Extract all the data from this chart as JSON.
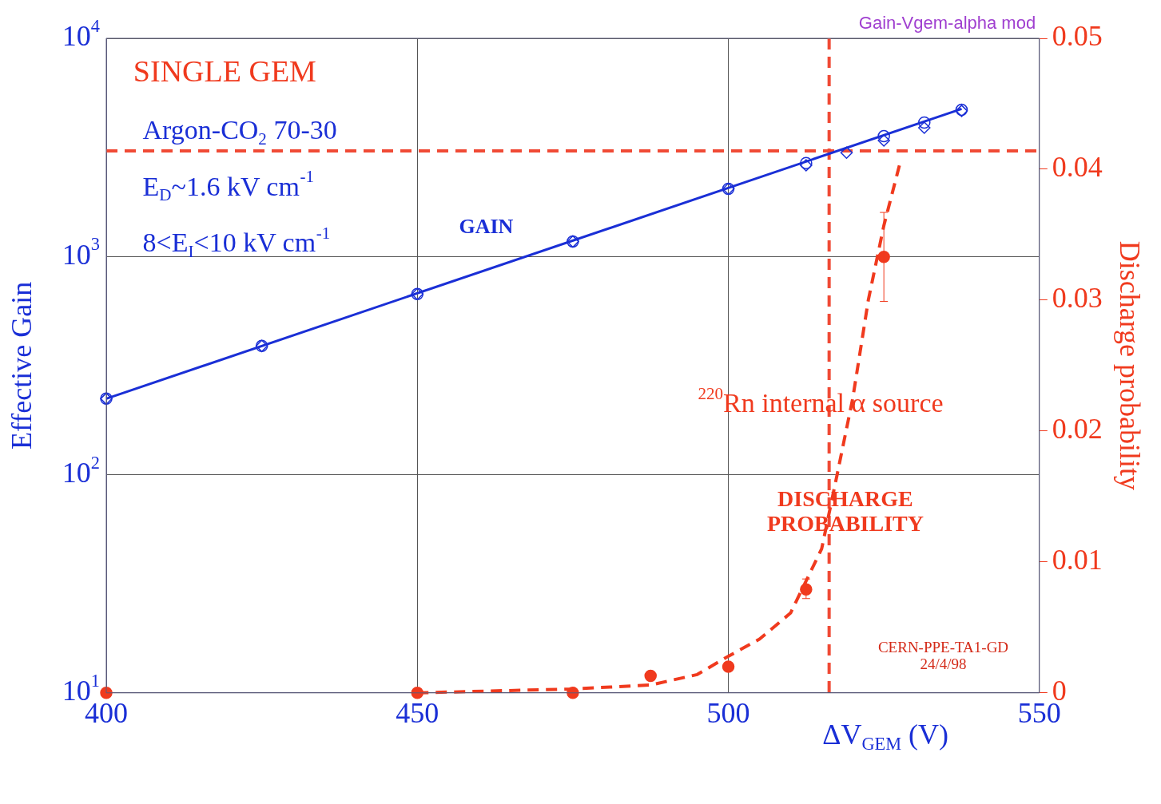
{
  "chart_data": {
    "type": "scatter",
    "annotations": [
      "Gain-Vgem-alpha mod",
      "SINGLE GEM",
      "Argon-CO$_{2}$ 70-30",
      "E$_{D}$~1.6 kV cm$^{-1}$",
      "8<E$_{I}$<10 kV cm$^{-1}$",
      "GAIN",
      "$^{220}$Rn internal α source",
      "DISCHARGE PROBABILITY",
      "CERN-PPE-TA1-GD 24/4/98"
    ],
    "xlabel": "ΔV$_{GEM}$ (V)",
    "ylabel": "Effective Gain",
    "y2label": "Discharge probability",
    "xlim": [
      400,
      550
    ],
    "xticks": [
      400,
      450,
      500,
      550
    ],
    "log": "y",
    "ylim": [
      10,
      10000
    ],
    "yticks": [
      {
        "value": 10,
        "label": "10$^{1}$"
      },
      {
        "value": 100,
        "label": "10$^{2}$"
      },
      {
        "value": 1000,
        "label": "10$^{3}$"
      },
      {
        "value": 10000,
        "label": "10$^{4}$"
      }
    ],
    "y2lim": [
      0,
      0.05
    ],
    "y2ticks": [
      0,
      0.01,
      0.02,
      0.03,
      0.04,
      0.05
    ],
    "grid": true,
    "legend": false,
    "ref_lines": [
      {
        "axis": "y2",
        "value": 0.0414,
        "color": "#f04a35",
        "line_style": "dashed"
      },
      {
        "axis": "x",
        "value": 516.2,
        "color": "#f04a35",
        "line_style": "dashed"
      }
    ],
    "series": [
      {
        "type": "scatter",
        "color": "#1a2fd6",
        "marker": "circle",
        "x": [
          400,
          425,
          450,
          475,
          500,
          512.5,
          525,
          531.5,
          537.5
        ],
        "values": [
          223,
          389,
          673,
          1172,
          2042,
          2680,
          3560,
          4110,
          4700
        ]
      },
      {
        "type": "scatter",
        "color": "#1a2fd6",
        "marker": "diamond",
        "x": [
          400,
          425,
          450,
          475,
          500,
          512.5,
          519,
          525,
          531.5,
          537.5
        ],
        "values": [
          223,
          389,
          673,
          1172,
          2042,
          2620,
          2990,
          3400,
          3890,
          4650
        ]
      },
      {
        "type": "line",
        "color": "#1a2fd6",
        "marker": "none",
        "line_style": "solid",
        "x": [
          400,
          537.5
        ],
        "values": [
          223,
          4750
        ]
      },
      {
        "type": "scatter",
        "axis": "y2",
        "color": "#f03a1e",
        "marker": "circle",
        "x": [
          400,
          450,
          475,
          487.5,
          500,
          512.5,
          525
        ],
        "values": [
          0,
          0,
          0,
          0.0013,
          0.002,
          0.0079,
          0.0333
        ],
        "errors": [
          null,
          null,
          null,
          null,
          null,
          [
            0.0072,
            0.0087
          ],
          [
            0.0299,
            0.0367
          ]
        ]
      },
      {
        "type": "line",
        "axis": "y2",
        "color": "#f03a1e",
        "marker": "none",
        "line_style": "dashed",
        "x": [
          450,
          475,
          487.5,
          495,
          500,
          505,
          510,
          515,
          517.5,
          520,
          522.5,
          525,
          527.5
        ],
        "values": [
          0,
          0.0003,
          0.0006,
          0.0014,
          0.0028,
          0.0041,
          0.0061,
          0.011,
          0.0167,
          0.0225,
          0.03,
          0.0357,
          0.0403
        ]
      }
    ]
  }
}
